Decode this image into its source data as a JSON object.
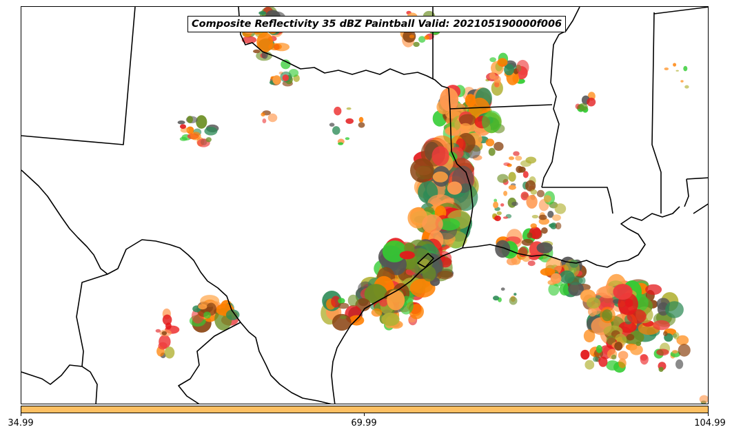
{
  "map": {
    "title": "Composite Reflectivity 35 dBZ Paintball Valid: 202105190000f006",
    "colorbar": {
      "color": "#fdbf62",
      "ticks": [
        "34.99",
        "69.99",
        "104.99"
      ]
    },
    "member_colors": [
      "#ff7f00",
      "#e31a1c",
      "#33cc33",
      "#6b8e23",
      "#b2b235",
      "#2e8b57",
      "#555555",
      "#ff9950",
      "#ee3b3b",
      "#8b4513",
      "#ffa040"
    ]
  }
}
